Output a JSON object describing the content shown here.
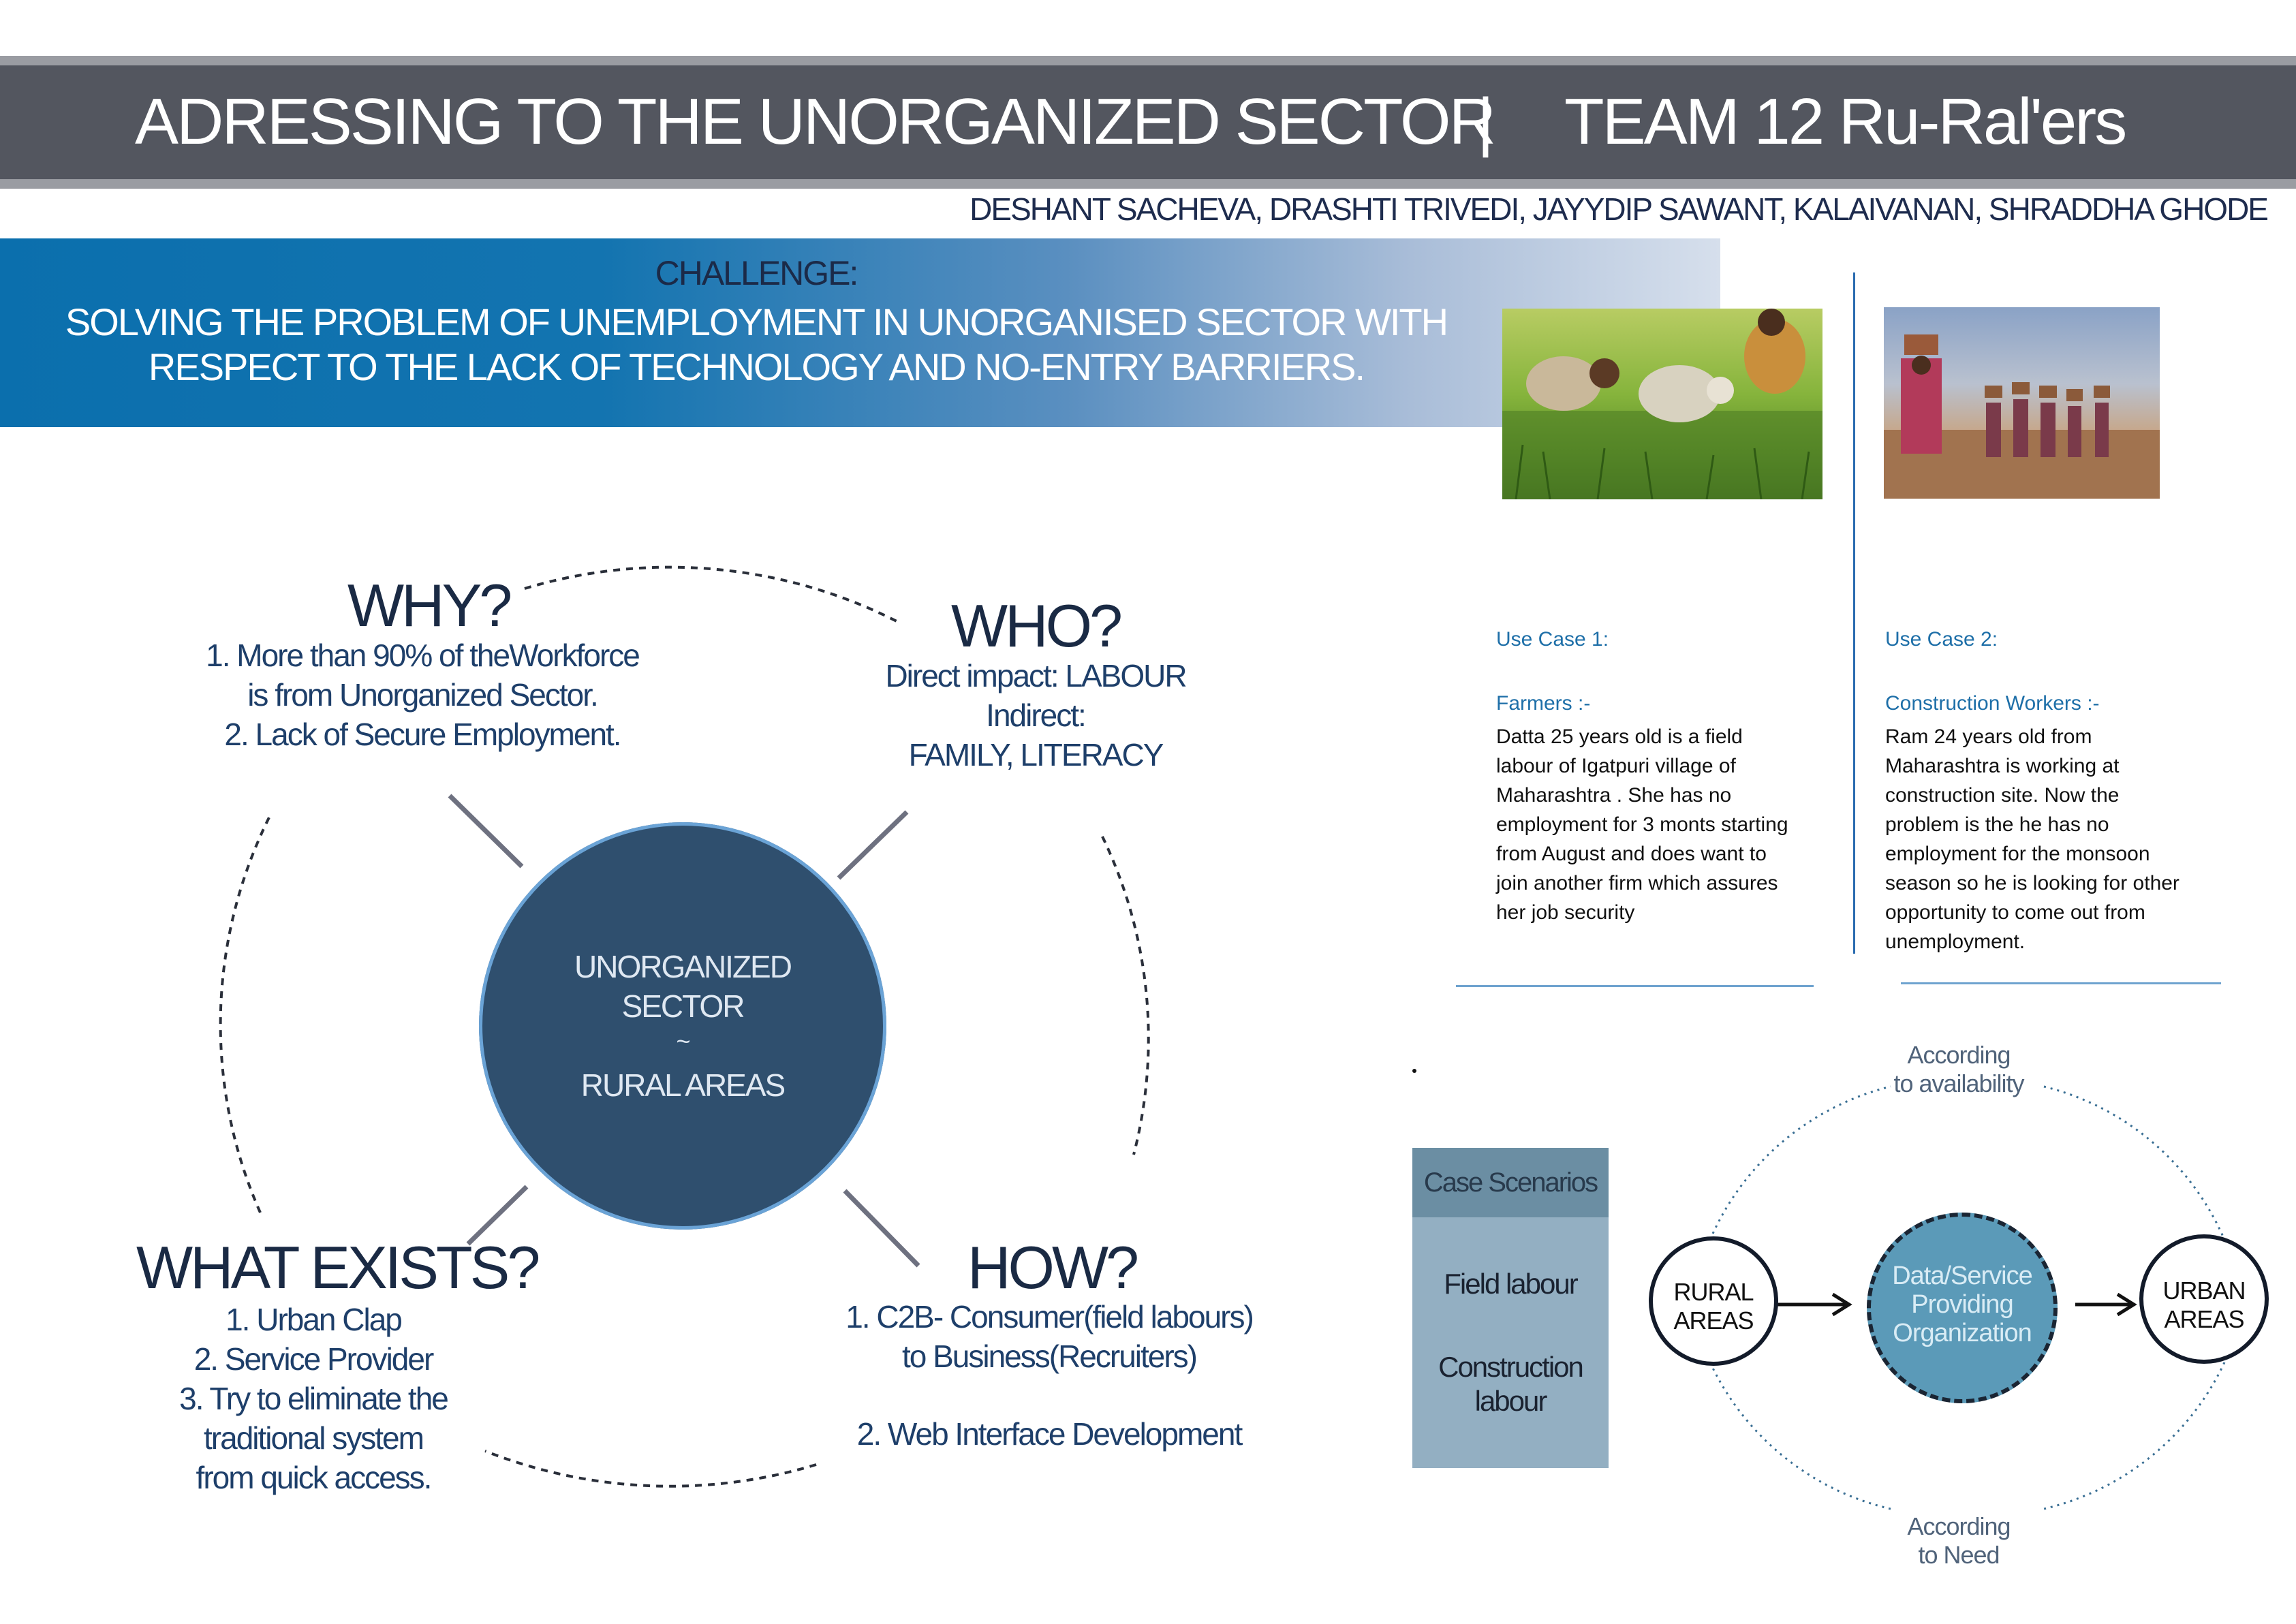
{
  "header": {
    "title_left": "ADRESSING TO THE UNORGANIZED SECTOR",
    "separator": "|",
    "title_right": "TEAM 12  Ru-Ral'ers",
    "authors": "DESHANT SACHEVA, DRASHTI TRIVEDI, JAYYDIP SAWANT, KALAIVANAN, SHRADDHA GHODE"
  },
  "challenge": {
    "heading": "CHALLENGE:",
    "line1": "SOLVING THE PROBLEM OF UNEMPLOYMENT IN UNORGANISED SECTOR WITH",
    "line2": "RESPECT TO THE LACK OF TECHNOLOGY AND NO-ENTRY BARRIERS."
  },
  "center": {
    "line1": "UNORGANIZED",
    "line2": "SECTOR",
    "line3": "~",
    "line4": "RURAL AREAS"
  },
  "why": {
    "heading": "WHY?",
    "lines": [
      "1. More than 90% of theWorkforce",
      "is from Unorganized Sector.",
      "2. Lack of Secure Employment."
    ]
  },
  "who": {
    "heading": "WHO?",
    "lines": [
      "Direct impact: LABOUR",
      "Indirect:",
      "FAMILY, LITERACY"
    ]
  },
  "what_exists": {
    "heading": "WHAT EXISTS?",
    "lines": [
      "1. Urban Clap",
      "2. Service Provider",
      "3. Try to eliminate the",
      "traditional system",
      "from quick access."
    ]
  },
  "how": {
    "heading": "HOW?",
    "lines": [
      "1. C2B- Consumer(field labours)",
      "to Business(Recruiters)",
      "2. Web Interface Development"
    ]
  },
  "use_case_1": {
    "label": "Use Case 1:",
    "subject": "Farmers :-",
    "lines": [
      "Datta 25 years old is a field",
      "labour of Igatpuri village of",
      "Maharashtra . She has no",
      "employment for 3 monts starting",
      "from August and does want to",
      "join another firm which assures",
      "her job security"
    ]
  },
  "use_case_2": {
    "label": "Use Case 2:",
    "subject": "Construction Workers :-",
    "lines": [
      "Ram 24 years old from",
      "Maharashtra is working at",
      "construction site. Now the",
      "problem is the he has no",
      "employment for the monsoon",
      "season so he is looking for other",
      "opportunity to come out  from",
      "unemployment."
    ]
  },
  "case_scenarios": {
    "heading": "Case Scenarios",
    "item1": "Field labour",
    "item2_line1": "Construction",
    "item2_line2": "labour"
  },
  "flow": {
    "rural_line1": "RURAL",
    "rural_line2": "AREAS",
    "data_line1": "Data/Service",
    "data_line2": "Providing",
    "data_line3": "Organization",
    "urban_line1": "URBAN",
    "urban_line2": "AREAS",
    "top_label_line1": "According",
    "top_label_line2": "to availability",
    "bottom_label_line1": "According",
    "bottom_label_line2": "to Need"
  },
  "colors": {
    "header_band": "#53565f",
    "challenge_blue": "#0b6fad",
    "center_circle": "#2f4f6e",
    "data_node": "#5b9ab8",
    "case_box": "#93afc2"
  }
}
